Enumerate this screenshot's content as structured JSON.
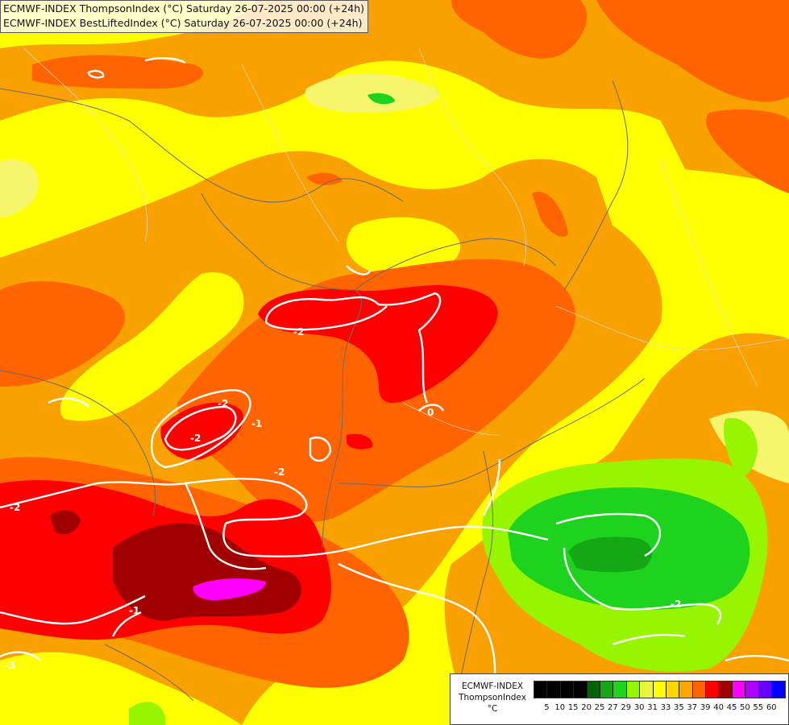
{
  "header": {
    "line1": "ECMWF-INDEX ThompsonIndex (°C) Saturday 26-07-2025 00:00 (+24h)",
    "line2": "ECMWF-INDEX BestLiftedIndex (°C) Saturday 26-07-2025 00:00 (+24h)"
  },
  "legend": {
    "model": "ECMWF-INDEX",
    "parameter": "ThompsonIndex",
    "unit": "°C",
    "ticks": [
      "5",
      "10",
      "15",
      "20",
      "25",
      "27",
      "29",
      "30",
      "31",
      "33",
      "35",
      "37",
      "39",
      "40",
      "45",
      "50",
      "55",
      "60"
    ],
    "colors": [
      "#000000",
      "#000000",
      "#000000",
      "#000000",
      "#006400",
      "#16a716",
      "#1ed31e",
      "#98f500",
      "#e7f53c",
      "#ffff00",
      "#ffd700",
      "#ffa500",
      "#ff6400",
      "#ff0000",
      "#a00000",
      "#ff00ff",
      "#b000ff",
      "#6400ff",
      "#0000ff"
    ]
  },
  "contour_labels": [
    "-2",
    "-2",
    "-1",
    "-2",
    "-2",
    "-1",
    "-2",
    "0",
    "-3",
    "-2"
  ],
  "colors": {
    "base": "#f8a100",
    "yellow": "#ffff00",
    "lightyellow": "#f7f56c",
    "darkorange": "#ff6400",
    "red": "#ff0000",
    "darkred": "#a00000",
    "magenta": "#ff00ff",
    "lightgreen": "#98f500",
    "green": "#1ed31e",
    "darkgreen": "#16a716"
  }
}
